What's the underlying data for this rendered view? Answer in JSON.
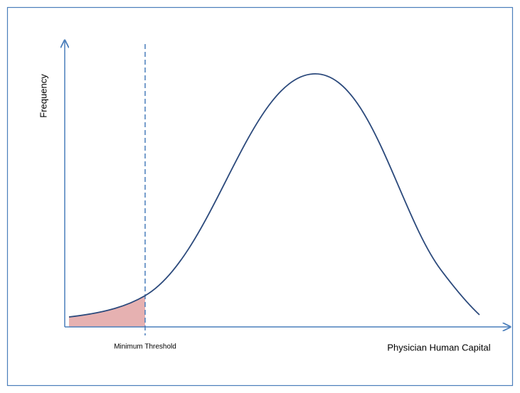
{
  "y_axis_label": "Frequency",
  "x_axis_label": "Physician Human Capital",
  "threshold_label": "Minimum Threshold"
}
